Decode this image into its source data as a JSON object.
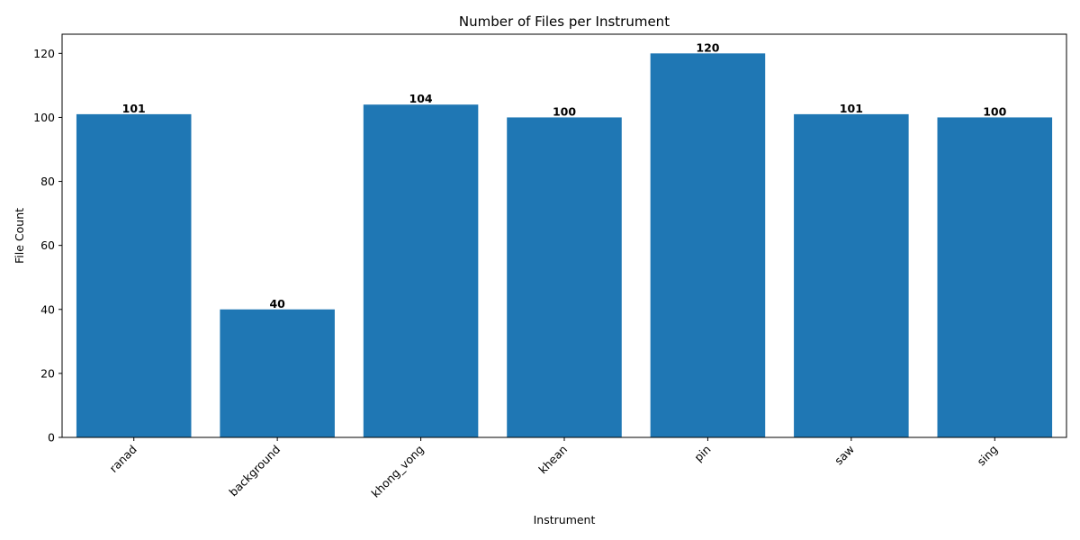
{
  "chart_data": {
    "type": "bar",
    "title": "Number of Files per Instrument",
    "xlabel": "Instrument",
    "ylabel": "File Count",
    "categories": [
      "ranad",
      "background",
      "khong_vong",
      "khean",
      "pin",
      "saw",
      "sing"
    ],
    "values": [
      101,
      40,
      104,
      100,
      120,
      101,
      100
    ],
    "ylim": [
      0,
      126
    ],
    "yticks": [
      0,
      20,
      40,
      60,
      80,
      100,
      120
    ],
    "bar_color": "#1f77b4",
    "grid": false,
    "legend": "none",
    "data_labels": true
  }
}
